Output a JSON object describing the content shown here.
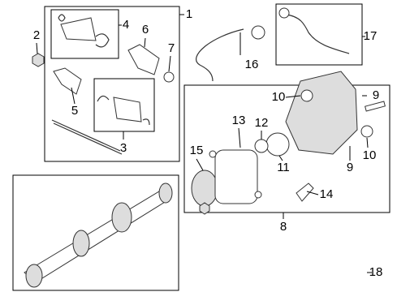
{
  "callouts": [
    "1",
    "2",
    "4",
    "6",
    "7",
    "5",
    "3",
    "16",
    "17",
    "10",
    "9",
    "13",
    "12",
    "15",
    "11",
    "10",
    "9",
    "14",
    "8",
    "18"
  ]
}
